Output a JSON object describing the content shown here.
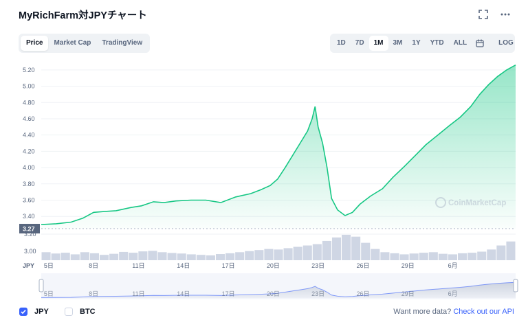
{
  "header": {
    "title": "MyRichFarm対JPYチャート",
    "fullscreen_icon": "expand-icon",
    "more_icon": "more-horizontal-icon"
  },
  "view_tabs": [
    {
      "label": "Price",
      "active": true
    },
    {
      "label": "Market Cap",
      "active": false
    },
    {
      "label": "TradingView",
      "active": false
    }
  ],
  "ranges": [
    {
      "label": "1D",
      "active": false
    },
    {
      "label": "7D",
      "active": false
    },
    {
      "label": "1M",
      "active": true
    },
    {
      "label": "3M",
      "active": false
    },
    {
      "label": "1Y",
      "active": false
    },
    {
      "label": "YTD",
      "active": false
    },
    {
      "label": "ALL",
      "active": false
    }
  ],
  "calendar_icon": "calendar-icon",
  "log_label": "LOG",
  "colors": {
    "line": "#16c784",
    "accent": "#3861fb",
    "grid": "#eff2f5",
    "text": "#58667e"
  },
  "chart_data": {
    "type": "area",
    "currency_label": "JPY",
    "y_ticks": [
      "5.20",
      "5.00",
      "4.80",
      "4.60",
      "4.40",
      "4.20",
      "4.00",
      "3.80",
      "3.60",
      "3.40"
    ],
    "ylim": [
      3.25,
      5.3
    ],
    "current_price_label": "3.27",
    "volume_ticks": [
      "3.20",
      "3.00"
    ],
    "x_ticks": [
      "5日",
      "8日",
      "11日",
      "14日",
      "17日",
      "20日",
      "23日",
      "26日",
      "29日",
      "6月"
    ],
    "x_range": [
      4.5,
      36.2
    ],
    "x_tick_positions": [
      5,
      8,
      11,
      14,
      17,
      20,
      23,
      26,
      29,
      32
    ],
    "series": [
      {
        "x": [
          4.5,
          5.5,
          6.5,
          7.3,
          8.0,
          8.7,
          9.5,
          10.5,
          11.2,
          12.0,
          12.7,
          13.5,
          14.5,
          15.5,
          16.5,
          17.5,
          18.5,
          19.2,
          19.8,
          20.3,
          20.8,
          21.3,
          21.8,
          22.3,
          22.6,
          22.8,
          23.0,
          23.3,
          23.6,
          23.9,
          24.3,
          24.8,
          25.3,
          25.8,
          26.5,
          27.3,
          28.0,
          28.8,
          29.5,
          30.2,
          31.0,
          31.8,
          32.5,
          33.2,
          33.8,
          34.4,
          35.0,
          35.6,
          36.2
        ],
        "values": [
          3.3,
          3.31,
          3.33,
          3.38,
          3.45,
          3.46,
          3.47,
          3.51,
          3.53,
          3.58,
          3.57,
          3.59,
          3.6,
          3.6,
          3.57,
          3.64,
          3.68,
          3.73,
          3.78,
          3.86,
          4.0,
          4.15,
          4.3,
          4.45,
          4.6,
          4.75,
          4.5,
          4.3,
          4.0,
          3.62,
          3.48,
          3.41,
          3.45,
          3.55,
          3.65,
          3.74,
          3.88,
          4.02,
          4.15,
          4.28,
          4.4,
          4.52,
          4.62,
          4.75,
          4.9,
          5.02,
          5.12,
          5.2,
          5.26
        ]
      }
    ],
    "volume": [
      0.3,
      0.25,
      0.28,
      0.22,
      0.3,
      0.26,
      0.2,
      0.24,
      0.31,
      0.28,
      0.33,
      0.35,
      0.3,
      0.27,
      0.25,
      0.22,
      0.2,
      0.18,
      0.23,
      0.26,
      0.3,
      0.34,
      0.38,
      0.42,
      0.4,
      0.45,
      0.5,
      0.55,
      0.6,
      0.72,
      0.85,
      0.95,
      0.88,
      0.65,
      0.42,
      0.3,
      0.26,
      0.22,
      0.25,
      0.28,
      0.3,
      0.24,
      0.22,
      0.26,
      0.28,
      0.32,
      0.4,
      0.55,
      0.7
    ]
  },
  "watermark": "CoinMarketCap",
  "legend": [
    {
      "label": "JPY",
      "checked": true
    },
    {
      "label": "BTC",
      "checked": false
    }
  ],
  "api_prompt": {
    "text": "Want more data?",
    "link": "Check out our API"
  }
}
